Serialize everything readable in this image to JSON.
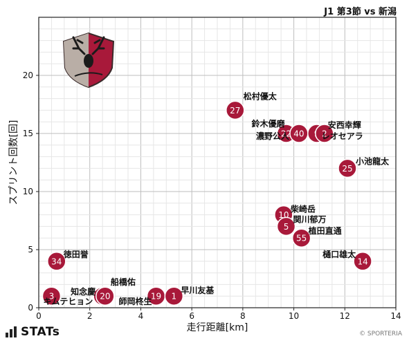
{
  "header": {
    "title": "J1 第3節 vs 新潟"
  },
  "footer": {
    "brand": "STATs",
    "copyright": "© SPORTERIA"
  },
  "colors": {
    "marker": "#a8193a",
    "marker_stroke": "#ffffff",
    "grid": "#cccccc",
    "axis": "#222222"
  },
  "chart_data": {
    "type": "scatter",
    "title": "J1 第3節 vs 新潟",
    "xlabel": "走行距離[km]",
    "ylabel": "スプリント回数[回]",
    "xlim": [
      0,
      14
    ],
    "ylim": [
      0,
      25
    ],
    "x_ticks": [
      0,
      2,
      4,
      6,
      8,
      10,
      12,
      14
    ],
    "y_ticks": [
      0,
      5,
      10,
      15,
      20
    ],
    "grid": true,
    "points": [
      {
        "number": "27",
        "name": "松村優太",
        "x": 7.7,
        "y": 17
      },
      {
        "number": "22",
        "name": "鈴木優磨",
        "x": 9.7,
        "y": 15
      },
      {
        "number": "40",
        "name": "濃野公人",
        "x": 10.2,
        "y": 15
      },
      {
        "number": "9",
        "name": "安西幸輝",
        "x": 10.9,
        "y": 15
      },
      {
        "number": "2",
        "name": "レオセアラ",
        "x": 11.2,
        "y": 15
      },
      {
        "number": "25",
        "name": "小池龍太",
        "x": 12.1,
        "y": 12
      },
      {
        "number": "10",
        "name": "柴崎岳",
        "x": 9.6,
        "y": 8
      },
      {
        "number": "5",
        "name": "関川郁万",
        "x": 9.7,
        "y": 7
      },
      {
        "number": "55",
        "name": "植田直通",
        "x": 10.3,
        "y": 6
      },
      {
        "number": "14",
        "name": "樋口雄太",
        "x": 12.7,
        "y": 4
      },
      {
        "number": "34",
        "name": "徳田誉",
        "x": 0.7,
        "y": 4
      },
      {
        "number": "3",
        "name": "キムテヒョン",
        "x": 0.5,
        "y": 1
      },
      {
        "number": "28",
        "name": "知念慶",
        "x": 2.5,
        "y": 1
      },
      {
        "number": "20",
        "name": "船橋佑",
        "x": 2.6,
        "y": 1
      },
      {
        "number": "19",
        "name": "師岡柊生",
        "x": 4.6,
        "y": 1
      },
      {
        "number": "1",
        "name": "早川友基",
        "x": 5.3,
        "y": 1
      }
    ]
  }
}
